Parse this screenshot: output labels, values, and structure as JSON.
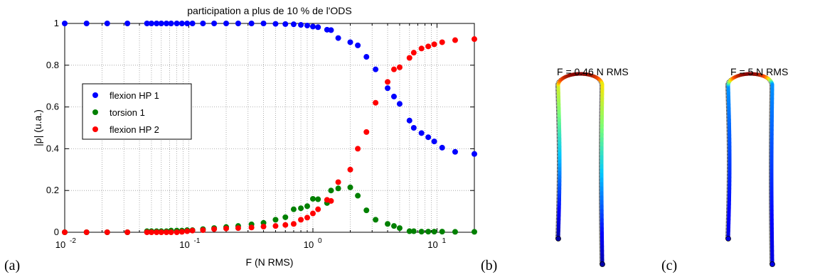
{
  "chart_data": {
    "type": "scatter",
    "title": "participation a plus de 10 % de l'ODS",
    "xlabel": "F (N RMS)",
    "ylabel": "|ρ| (u.a.)",
    "xscale": "log",
    "xlim": [
      0.01,
      20
    ],
    "ylim": [
      0,
      1
    ],
    "grid": true,
    "legend_position": "left-middle",
    "xticks": [
      {
        "value": 0.01,
        "base": "10",
        "exp": "-2"
      },
      {
        "value": 0.1,
        "base": "10",
        "exp": "-1"
      },
      {
        "value": 1,
        "base": "10",
        "exp": "0"
      },
      {
        "value": 10,
        "base": "10",
        "exp": "1"
      }
    ],
    "yticks": [
      "0",
      "0.2",
      "0.4",
      "0.6",
      "0.8",
      "1"
    ],
    "x": [
      0.01,
      0.015,
      0.022,
      0.032,
      0.046,
      0.05,
      0.055,
      0.06,
      0.066,
      0.072,
      0.08,
      0.088,
      0.097,
      0.107,
      0.13,
      0.16,
      0.2,
      0.25,
      0.32,
      0.4,
      0.5,
      0.6,
      0.7,
      0.8,
      0.9,
      1.0,
      1.1,
      1.3,
      1.4,
      1.6,
      2.0,
      2.3,
      2.7,
      3.2,
      4.0,
      4.5,
      5.0,
      6.0,
      6.5,
      7.5,
      8.5,
      9.5,
      11.0,
      14.0,
      20.0
    ],
    "series": [
      {
        "name": "flexion HP 1",
        "color": "#0000ff",
        "values": [
          1.0,
          1.0,
          1.0,
          1.0,
          1.0,
          1.0,
          1.0,
          1.0,
          1.0,
          1.0,
          1.0,
          1.0,
          1.0,
          1.0,
          1.0,
          1.0,
          1.0,
          1.0,
          1.0,
          1.0,
          0.998,
          0.997,
          0.996,
          0.993,
          0.99,
          0.985,
          0.982,
          0.97,
          0.968,
          0.93,
          0.91,
          0.895,
          0.84,
          0.78,
          0.69,
          0.65,
          0.615,
          0.535,
          0.5,
          0.475,
          0.455,
          0.435,
          0.405,
          0.385,
          0.375
        ]
      },
      {
        "name": "torsion 1",
        "color": "#008000",
        "values": [
          0.0,
          0.0,
          0.0,
          0.0,
          0.005,
          0.005,
          0.005,
          0.005,
          0.005,
          0.008,
          0.008,
          0.008,
          0.01,
          0.01,
          0.015,
          0.02,
          0.025,
          0.03,
          0.038,
          0.045,
          0.06,
          0.072,
          0.11,
          0.115,
          0.125,
          0.16,
          0.158,
          0.14,
          0.2,
          0.21,
          0.215,
          0.175,
          0.105,
          0.06,
          0.04,
          0.03,
          0.02,
          0.005,
          0.005,
          0.003,
          0.003,
          0.003,
          0.003,
          0.002,
          0.002
        ]
      },
      {
        "name": "flexion HP 2",
        "color": "#ff0000",
        "values": [
          0.0,
          0.0,
          0.0,
          0.0,
          0.0,
          0.0,
          0.0,
          0.0,
          0.0,
          0.0,
          0.0,
          0.002,
          0.005,
          0.008,
          0.01,
          0.015,
          0.018,
          0.02,
          0.023,
          0.027,
          0.03,
          0.035,
          0.04,
          0.06,
          0.07,
          0.09,
          0.11,
          0.155,
          0.15,
          0.24,
          0.3,
          0.4,
          0.48,
          0.62,
          0.72,
          0.78,
          0.79,
          0.835,
          0.86,
          0.88,
          0.89,
          0.9,
          0.91,
          0.92,
          0.925
        ]
      }
    ]
  },
  "panels": {
    "a": "(a)",
    "b": "(b)",
    "c": "(c)"
  },
  "shapes": [
    {
      "label": "F = 0.46 N RMS"
    },
    {
      "label": "F = 5 N RMS"
    }
  ]
}
